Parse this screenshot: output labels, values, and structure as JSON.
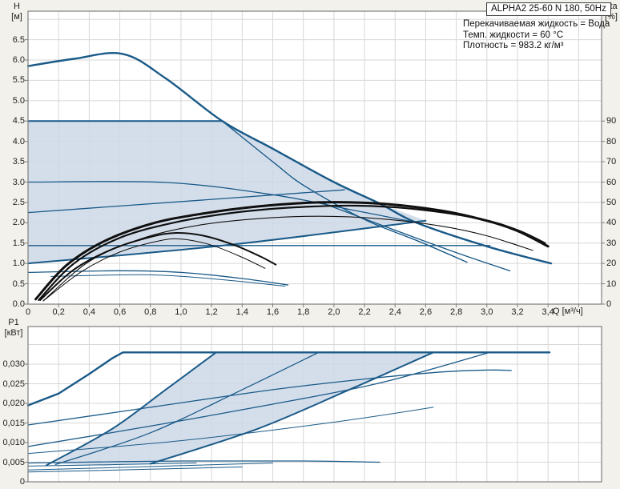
{
  "header": {
    "model": "ALPHA2 25-60 N 180, 50Hz"
  },
  "info_box": {
    "lines": [
      "Перекачиваемая жидкость = Вода",
      "Темп. жидкости = 60 °C",
      "Плотность = 983.2 кг/м³"
    ]
  },
  "colors": {
    "background": "#f2f1eb",
    "plot_background": "#ffffff",
    "grid": "#d7d7d7",
    "axis_border": "#7e7e7e",
    "curve_blue": "#1a5a88",
    "curve_black": "#101010",
    "region_fill": "#ccd8e7",
    "label_text": "#222222"
  },
  "chart_data": [
    {
      "id": "head-flow-chart",
      "type": "line",
      "x_axis": {
        "label": "Q [м³/ч]",
        "min": 0,
        "max": 3.75,
        "grid_step": 0.2,
        "grid_max": 3.6,
        "tick_start": 0,
        "tick_step": 0.2,
        "tick_labels": [
          "0",
          "0,2",
          "0,4",
          "0,6",
          "0,8",
          "1,0",
          "1,2",
          "1,4",
          "1,6",
          "1,8",
          "2,0",
          "2,2",
          "2,4",
          "2,6",
          "2,8",
          "3,0",
          "3,2",
          "3,4"
        ],
        "show_tick_labels": true
      },
      "y_axis": {
        "label_top": "H",
        "label_unit": "[м]",
        "min": 0,
        "max": 7.2,
        "grid_step": 0.5,
        "grid_max": 7.0,
        "tick_start": 0,
        "tick_step": 0.5,
        "tick_labels": [
          "0.0",
          "0.5",
          "1.0",
          "1.5",
          "2.0",
          "2.5",
          "3.0",
          "3.5",
          "4.0",
          "4.5",
          "5.0",
          "5.5",
          "6.0",
          "6.5"
        ]
      },
      "y2_axis": {
        "label_top": "eta",
        "label_unit": "[%]",
        "tick_start": 0,
        "tick_step": 10,
        "to_y1_factor": 0.05,
        "tick_labels": [
          "0",
          "10",
          "20",
          "30",
          "40",
          "50",
          "60",
          "70",
          "80",
          "90"
        ]
      },
      "region": {
        "name": "control-range-area",
        "points": [
          [
            0,
            4.5
          ],
          [
            1.27,
            4.5
          ],
          [
            1.6,
            3.82
          ],
          [
            2.0,
            3.0
          ],
          [
            2.3,
            2.47
          ],
          [
            2.6,
            2.05
          ],
          [
            1.3,
            1.45
          ],
          [
            0,
            1.0
          ]
        ]
      },
      "series": [
        {
          "name": "constant-pressure-4-5m",
          "width": 2.0,
          "smooth": false,
          "points": [
            [
              0,
              4.5
            ],
            [
              1.27,
              4.5
            ]
          ]
        },
        {
          "name": "constant-pressure-3-0m",
          "width": 1.3,
          "smooth": true,
          "points": [
            [
              0,
              3.0
            ],
            [
              0.9,
              2.99
            ],
            [
              1.6,
              2.69
            ],
            [
              2.1,
              2.33
            ],
            [
              2.52,
              2.02
            ]
          ]
        },
        {
          "name": "constant-pressure-1-5m",
          "width": 1.3,
          "smooth": false,
          "points": [
            [
              0,
              1.44
            ],
            [
              3.02,
              1.44
            ]
          ]
        },
        {
          "name": "proportional-pressure-upper",
          "width": 1.3,
          "smooth": false,
          "points": [
            [
              0,
              2.25
            ],
            [
              2.07,
              2.81
            ]
          ]
        },
        {
          "name": "proportional-pressure-mid",
          "width": 2.0,
          "smooth": true,
          "points": [
            [
              0,
              1.0
            ],
            [
              1.3,
              1.45
            ],
            [
              2.6,
              2.05
            ]
          ]
        },
        {
          "name": "speed-curve-a",
          "width": 1.4,
          "smooth": true,
          "points": [
            [
              1.27,
              4.5
            ],
            [
              1.6,
              3.5
            ],
            [
              1.81,
              2.9
            ],
            [
              2.2,
              2.08
            ],
            [
              2.55,
              1.55
            ],
            [
              2.87,
              1.03
            ]
          ]
        },
        {
          "name": "speed-curve-b",
          "width": 1.4,
          "smooth": true,
          "points": [
            [
              1.9,
              2.52
            ],
            [
              2.54,
              1.62
            ],
            [
              2.85,
              1.2
            ],
            [
              3.15,
              0.82
            ]
          ]
        },
        {
          "name": "min-speed-curve",
          "width": 1.3,
          "smooth": true,
          "points": [
            [
              0,
              0.78
            ],
            [
              0.6,
              0.82
            ],
            [
              1.0,
              0.78
            ],
            [
              1.4,
              0.63
            ],
            [
              1.7,
              0.47
            ]
          ]
        },
        {
          "name": "min-speed-curve-2",
          "width": 1.0,
          "smooth": true,
          "points": [
            [
              0.15,
              0.68
            ],
            [
              0.8,
              0.72
            ],
            [
              1.3,
              0.59
            ],
            [
              1.68,
              0.44
            ]
          ]
        },
        {
          "name": "max-speed-curve",
          "width": 2.4,
          "smooth": true,
          "points": [
            [
              0,
              5.85
            ],
            [
              0.3,
              6.03
            ],
            [
              0.62,
              6.15
            ],
            [
              0.9,
              5.55
            ],
            [
              1.27,
              4.5
            ],
            [
              1.6,
              3.82
            ],
            [
              2.0,
              3.0
            ],
            [
              2.3,
              2.47
            ],
            [
              2.54,
              2.0
            ],
            [
              3.0,
              1.42
            ],
            [
              3.42,
              1.0
            ]
          ]
        },
        {
          "name": "efficiency-curve-max",
          "color": "#101010",
          "width": 3.0,
          "smooth": true,
          "points": [
            [
              0.05,
              0.12
            ],
            [
              0.25,
              0.95
            ],
            [
              0.5,
              1.55
            ],
            [
              0.8,
              1.97
            ],
            [
              1.1,
              2.2
            ],
            [
              1.5,
              2.4
            ],
            [
              1.9,
              2.5
            ],
            [
              2.3,
              2.47
            ],
            [
              2.7,
              2.3
            ],
            [
              3.0,
              2.05
            ],
            [
              3.2,
              1.8
            ],
            [
              3.4,
              1.42
            ]
          ]
        },
        {
          "name": "efficiency-curve-2",
          "color": "#101010",
          "width": 2.2,
          "smooth": true,
          "points": [
            [
              0.07,
              0.1
            ],
            [
              0.3,
              1.0
            ],
            [
              0.6,
              1.63
            ],
            [
              0.95,
              2.0
            ],
            [
              1.35,
              2.25
            ],
            [
              1.75,
              2.38
            ],
            [
              2.15,
              2.42
            ],
            [
              2.55,
              2.33
            ],
            [
              2.95,
              2.1
            ],
            [
              3.2,
              1.82
            ],
            [
              3.38,
              1.5
            ]
          ]
        },
        {
          "name": "efficiency-curve-3",
          "color": "#101010",
          "width": 1.1,
          "smooth": true,
          "points": [
            [
              0.1,
              0.08
            ],
            [
              0.4,
              1.05
            ],
            [
              0.75,
              1.62
            ],
            [
              1.1,
              1.93
            ],
            [
              1.5,
              2.1
            ],
            [
              1.9,
              2.16
            ],
            [
              2.3,
              2.1
            ],
            [
              2.7,
              1.92
            ],
            [
              3.0,
              1.68
            ],
            [
              3.3,
              1.32
            ]
          ]
        },
        {
          "name": "efficiency-curve-min",
          "color": "#101010",
          "width": 2.0,
          "smooth": true,
          "points": [
            [
              0.08,
              0.1
            ],
            [
              0.3,
              0.85
            ],
            [
              0.55,
              1.35
            ],
            [
              0.8,
              1.65
            ],
            [
              0.97,
              1.75
            ],
            [
              1.15,
              1.68
            ],
            [
              1.35,
              1.45
            ],
            [
              1.52,
              1.17
            ],
            [
              1.62,
              0.97
            ]
          ]
        },
        {
          "name": "efficiency-curve-min-2",
          "color": "#101010",
          "width": 1.0,
          "smooth": true,
          "points": [
            [
              0.1,
              0.08
            ],
            [
              0.35,
              0.8
            ],
            [
              0.6,
              1.28
            ],
            [
              0.85,
              1.55
            ],
            [
              1.0,
              1.6
            ],
            [
              1.2,
              1.45
            ],
            [
              1.4,
              1.15
            ],
            [
              1.55,
              0.88
            ]
          ]
        }
      ]
    },
    {
      "id": "power-flow-chart",
      "type": "line",
      "x_axis": {
        "label": "",
        "min": 0,
        "max": 3.75,
        "grid_step": 0.2,
        "grid_max": 3.6,
        "tick_start": 0,
        "tick_step": 0.2,
        "tick_labels": [],
        "show_tick_labels": false
      },
      "y_axis": {
        "label_top": "P1",
        "label_unit": "[кВт]",
        "min": 0,
        "max": 0.0396,
        "grid_step": 0.005,
        "grid_max": 0.035,
        "tick_start": 0,
        "tick_step": 0.005,
        "tick_labels": [
          "0",
          "0,005",
          "0,010",
          "0,015",
          "0,020",
          "0,025",
          "0,030"
        ]
      },
      "region": {
        "name": "control-range-power-area",
        "points": [
          [
            0.16,
            0.0046
          ],
          [
            0.55,
            0.0135
          ],
          [
            0.9,
            0.0235
          ],
          [
            1.23,
            0.033
          ],
          [
            2.65,
            0.033
          ],
          [
            2.1,
            0.0235
          ],
          [
            1.5,
            0.0135
          ],
          [
            0.85,
            0.0048
          ],
          [
            0.5,
            0.0041
          ]
        ]
      },
      "series": [
        {
          "name": "p1-max-curve",
          "width": 2.4,
          "smooth": false,
          "points": [
            [
              0,
              0.0195
            ],
            [
              0.2,
              0.0225
            ],
            [
              0.4,
              0.0275
            ],
            [
              0.55,
              0.0315
            ],
            [
              0.62,
              0.033
            ],
            [
              3.41,
              0.033
            ]
          ]
        },
        {
          "name": "p1-constant-pressure-3",
          "width": 1.3,
          "smooth": true,
          "points": [
            [
              0,
              0.0145
            ],
            [
              0.8,
              0.019
            ],
            [
              1.6,
              0.0235
            ],
            [
              2.2,
              0.0262
            ],
            [
              2.7,
              0.028
            ],
            [
              3.0,
              0.0285
            ],
            [
              3.16,
              0.0284
            ]
          ]
        },
        {
          "name": "p1-constant-pressure-2",
          "width": 1.3,
          "smooth": true,
          "points": [
            [
              0,
              0.009
            ],
            [
              0.8,
              0.0142
            ],
            [
              1.6,
              0.0198
            ],
            [
              2.3,
              0.0252
            ],
            [
              3.02,
              0.033
            ]
          ]
        },
        {
          "name": "p1-constant-pressure-1",
          "width": 1.0,
          "smooth": true,
          "points": [
            [
              0,
              0.0072
            ],
            [
              1.0,
              0.0105
            ],
            [
              2.0,
              0.0152
            ],
            [
              2.65,
              0.019
            ]
          ]
        },
        {
          "name": "p1-prop-pressure-3",
          "width": 2.0,
          "smooth": true,
          "points": [
            [
              0.12,
              0.0042
            ],
            [
              0.55,
              0.0135
            ],
            [
              0.9,
              0.0235
            ],
            [
              1.23,
              0.033
            ]
          ]
        },
        {
          "name": "p1-prop-pressure-2",
          "width": 1.3,
          "smooth": true,
          "points": [
            [
              0.18,
              0.0044
            ],
            [
              0.8,
              0.0125
            ],
            [
              1.4,
              0.0235
            ],
            [
              1.9,
              0.033
            ]
          ]
        },
        {
          "name": "p1-prop-pressure-1",
          "width": 2.0,
          "smooth": true,
          "points": [
            [
              0.8,
              0.0046
            ],
            [
              1.5,
              0.0135
            ],
            [
              2.1,
              0.0235
            ],
            [
              2.65,
              0.033
            ]
          ]
        },
        {
          "name": "p1-min-curve",
          "width": 1.2,
          "smooth": true,
          "points": [
            [
              0,
              0.0048
            ],
            [
              1.0,
              0.0053
            ],
            [
              1.8,
              0.0053
            ],
            [
              2.3,
              0.005
            ]
          ]
        },
        {
          "name": "p1-low-2",
          "width": 1.0,
          "smooth": true,
          "points": [
            [
              0,
              0.004
            ],
            [
              0.6,
              0.0044
            ],
            [
              1.1,
              0.0048
            ]
          ]
        },
        {
          "name": "p1-low-3",
          "width": 1.0,
          "smooth": true,
          "points": [
            [
              0,
              0.003
            ],
            [
              0.9,
              0.004
            ],
            [
              1.6,
              0.0048
            ]
          ]
        },
        {
          "name": "p1-low-4",
          "width": 1.0,
          "smooth": true,
          "points": [
            [
              0,
              0.0025
            ],
            [
              0.8,
              0.0032
            ],
            [
              1.4,
              0.0038
            ]
          ]
        }
      ]
    }
  ]
}
